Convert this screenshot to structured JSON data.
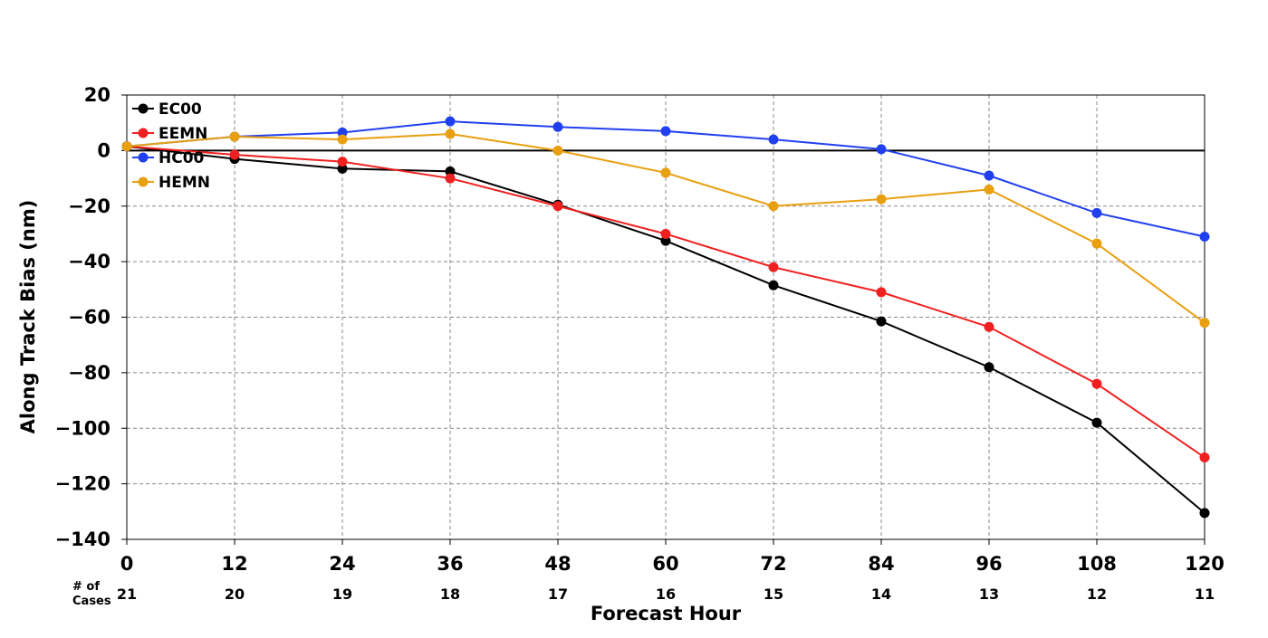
{
  "chart_data": {
    "type": "line",
    "title": "",
    "xlabel": "Forecast Hour",
    "ylabel": "Along Track Bias (nm)",
    "x": [
      0,
      12,
      24,
      36,
      48,
      60,
      72,
      84,
      96,
      108,
      120
    ],
    "xlim": [
      0,
      120
    ],
    "ylim": [
      -140,
      20
    ],
    "xticks": [
      "0",
      "12",
      "24",
      "36",
      "48",
      "60",
      "72",
      "84",
      "96",
      "108",
      "120"
    ],
    "yticks": [
      "20",
      "0",
      "−20",
      "−40",
      "−60",
      "−80",
      "−100",
      "−120",
      "−140"
    ],
    "grid": true,
    "legend_position": "top-left",
    "cases_label_line1": "# of",
    "cases_label_line2": "Cases",
    "cases": [
      "21",
      "20",
      "19",
      "18",
      "17",
      "16",
      "15",
      "14",
      "13",
      "12",
      "11"
    ],
    "series": [
      {
        "name": "EC00",
        "color": "#000000",
        "values": [
          1.5,
          -3,
          -6.5,
          -7.5,
          -19.5,
          -32.5,
          -48.5,
          -61.5,
          -78,
          -98,
          -130.5
        ]
      },
      {
        "name": "EEMN",
        "color": "#f02020",
        "values": [
          1.5,
          -1.5,
          -4,
          -10,
          -20,
          -30,
          -42,
          -51,
          -63.5,
          -84,
          -110.5
        ]
      },
      {
        "name": "HC00",
        "color": "#2040f0",
        "values": [
          1.5,
          5,
          6.5,
          10.5,
          8.5,
          7,
          4,
          0.5,
          -9,
          -22.5,
          -31
        ]
      },
      {
        "name": "HEMN",
        "color": "#e8a010",
        "values": [
          1.5,
          5,
          4,
          6,
          0,
          -8,
          -20,
          -17.5,
          -14,
          -33.5,
          -62
        ]
      }
    ]
  }
}
